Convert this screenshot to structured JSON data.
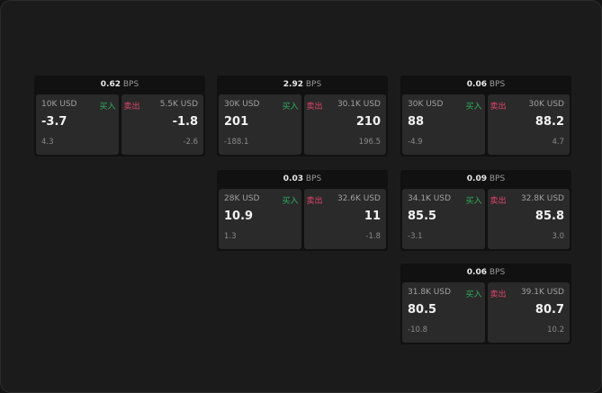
{
  "unit": "BPS",
  "buy_label": "买入",
  "sell_label": "卖出",
  "colors": {
    "buy": "#2fae5c",
    "sell": "#e0456a"
  },
  "cards": [
    {
      "spread": "0.62",
      "buy": {
        "amount": "10K USD",
        "price": "-3.7",
        "change": "4.3"
      },
      "sell": {
        "amount": "5.5K USD",
        "price": "-1.8",
        "change": "-2.6"
      }
    },
    {
      "spread": "2.92",
      "buy": {
        "amount": "30K USD",
        "price": "201",
        "change": "-188.1"
      },
      "sell": {
        "amount": "30.1K USD",
        "price": "210",
        "change": "196.5"
      }
    },
    {
      "spread": "0.06",
      "buy": {
        "amount": "30K USD",
        "price": "88",
        "change": "-4.9"
      },
      "sell": {
        "amount": "30K USD",
        "price": "88.2",
        "change": "4.7"
      }
    },
    {
      "spread": "0.03",
      "buy": {
        "amount": "28K USD",
        "price": "10.9",
        "change": "1.3"
      },
      "sell": {
        "amount": "32.6K USD",
        "price": "11",
        "change": "-1.8"
      }
    },
    {
      "spread": "0.09",
      "buy": {
        "amount": "34.1K USD",
        "price": "85.5",
        "change": "-3.1"
      },
      "sell": {
        "amount": "32.8K USD",
        "price": "85.8",
        "change": "3.0"
      }
    },
    {
      "spread": "0.06",
      "buy": {
        "amount": "31.8K USD",
        "price": "80.5",
        "change": "-10.8"
      },
      "sell": {
        "amount": "39.1K USD",
        "price": "80.7",
        "change": "10.2"
      }
    }
  ]
}
